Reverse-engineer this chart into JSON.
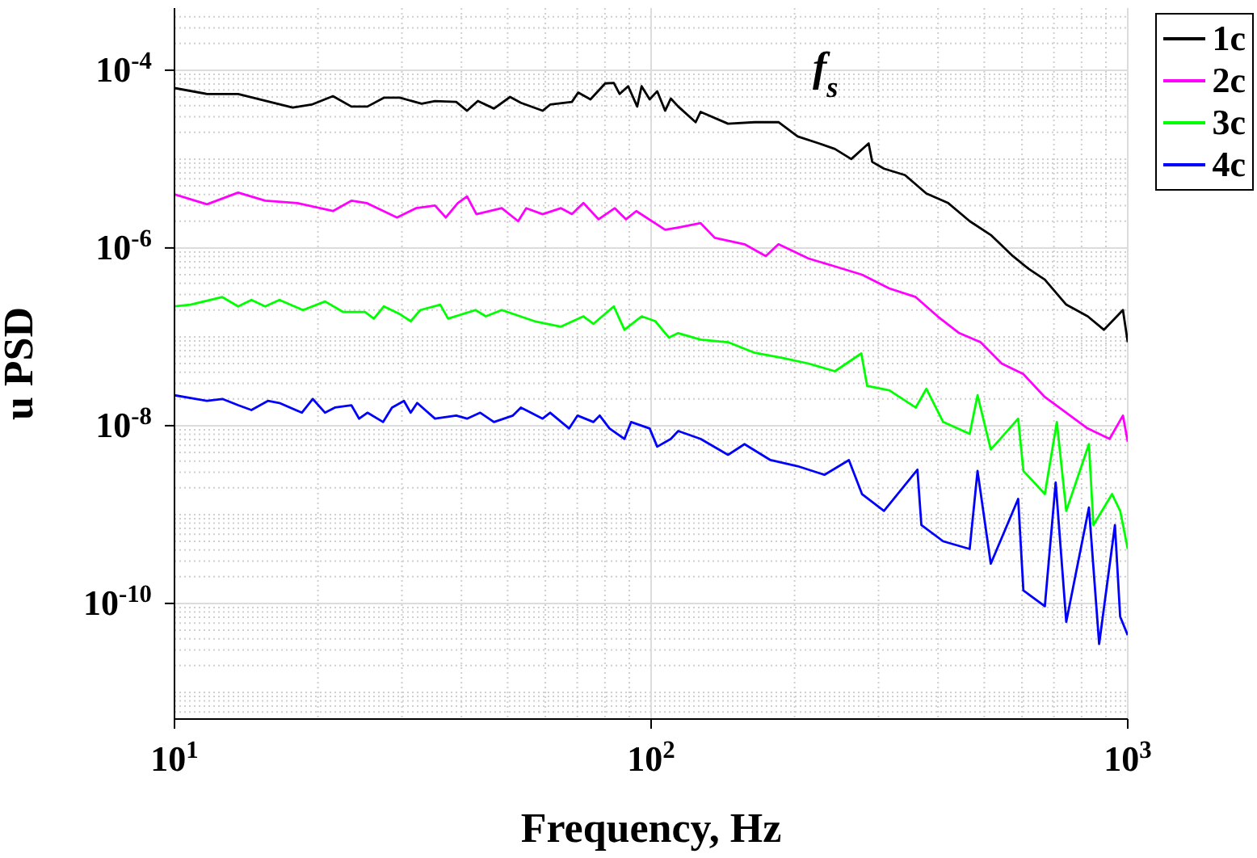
{
  "chart_data": {
    "type": "line",
    "xlabel": "Frequency, Hz",
    "ylabel": "u PSD",
    "log": "xy",
    "grid": true,
    "legend": "top right",
    "marker": "none",
    "line_style": "solid",
    "xlim": [
      10,
      1000
    ],
    "xticks": [
      {
        "value": 10,
        "label": "10$^{1}$"
      },
      {
        "value": 100,
        "label": "10$^{2}$"
      },
      {
        "value": 1000,
        "label": "10$^{3}$"
      }
    ],
    "ylim": [
      5e-12,
      0.0005
    ],
    "yticks": [
      {
        "value": 1e-10,
        "label": "10$^{-10}$"
      },
      {
        "value": 1e-08,
        "label": "10$^{-8}$"
      },
      {
        "value": 1e-06,
        "label": "10$^{-6}$"
      },
      {
        "value": 0.0001,
        "label": "10$^{-4}$"
      }
    ],
    "annotations": [
      "f$_{s}$"
    ],
    "series": [
      {
        "name": "1c",
        "color": "#000000",
        "x": [
          10,
          11.7,
          13.6,
          17.7,
          19.4,
          21.5,
          23.5,
          25.4,
          27.5,
          29.7,
          33,
          35.2,
          39,
          41.1,
          43.3,
          46.8,
          50.6,
          53.3,
          59.2,
          61.4,
          68.2,
          70.3,
          74.6,
          80.1,
          83.5,
          85.9,
          89.5,
          93.5,
          95.5,
          99.3,
          103,
          107,
          110,
          114,
          124,
          127,
          145,
          165,
          185,
          203,
          225,
          243,
          263,
          286,
          291,
          308,
          341,
          378,
          420,
          466,
          516,
          574,
          620,
          670,
          743,
          824,
          891,
          977,
          1000
        ],
        "values": [
          6.3e-05,
          5.4e-05,
          5.4e-05,
          3.8e-05,
          4.1e-05,
          5.1e-05,
          3.9e-05,
          3.9e-05,
          4.9e-05,
          4.9e-05,
          4.2e-05,
          4.5e-05,
          4.4e-05,
          3.5e-05,
          4.5e-05,
          3.7e-05,
          5e-05,
          4.3e-05,
          3.5e-05,
          4.1e-05,
          4.4e-05,
          5.6e-05,
          4.7e-05,
          7.1e-05,
          7.2e-05,
          5.4e-05,
          6.6e-05,
          3.9e-05,
          6.6e-05,
          4.7e-05,
          5.8e-05,
          3.5e-05,
          4.8e-05,
          3.9e-05,
          2.6e-05,
          3.4e-05,
          2.5e-05,
          2.6e-05,
          2.6e-05,
          1.8e-05,
          1.5e-05,
          1.3e-05,
          1e-05,
          1.5e-05,
          9.3e-06,
          7.8e-06,
          6.6e-06,
          4.1e-06,
          3.2e-06,
          2e-06,
          1.4e-06,
          8.1e-07,
          5.8e-07,
          4.4e-07,
          2.3e-07,
          1.7e-07,
          1.2e-07,
          2e-07,
          8.7e-08
        ]
      },
      {
        "name": "2c",
        "color": "#ff00ff",
        "x": [
          10,
          11.7,
          13.6,
          15.5,
          18.1,
          21.5,
          23.5,
          25.3,
          29.3,
          32.1,
          35.2,
          37.1,
          39.3,
          41.1,
          43,
          48.6,
          52.6,
          54.7,
          59.2,
          64.7,
          68.2,
          72.1,
          77.6,
          83.9,
          88.6,
          93.1,
          107,
          114,
          127,
          136,
          157,
          174,
          185,
          214,
          243,
          277,
          316,
          359,
          399,
          443,
          491,
          544,
          604,
          670,
          743,
          824,
          916,
          977,
          1000
        ],
        "values": [
          4e-06,
          3.1e-06,
          4.2e-06,
          3.4e-06,
          3.2e-06,
          2.6e-06,
          3.4e-06,
          3.2e-06,
          2.2e-06,
          2.8e-06,
          3e-06,
          2.2e-06,
          3.2e-06,
          3.8e-06,
          2.4e-06,
          2.8e-06,
          2e-06,
          2.8e-06,
          2.4e-06,
          2.8e-06,
          2.4e-06,
          3.2e-06,
          2.1e-06,
          2.8e-06,
          2.1e-06,
          2.6e-06,
          1.6e-06,
          1.7e-06,
          1.9e-06,
          1.3e-06,
          1.1e-06,
          8.1e-07,
          1.1e-06,
          7.6e-07,
          6.2e-07,
          5e-07,
          3.5e-07,
          2.8e-07,
          1.7e-07,
          1.1e-07,
          8.7e-08,
          5e-08,
          3.8e-08,
          2.1e-08,
          1.4e-08,
          9.3e-09,
          7.1e-09,
          1.3e-08,
          6.6e-09
        ]
      },
      {
        "name": "3c",
        "color": "#00ff00",
        "x": [
          10,
          10.8,
          12.6,
          13.6,
          14.5,
          15.5,
          16.6,
          18.6,
          20.7,
          22.6,
          25.1,
          26.2,
          27.5,
          29.7,
          31.3,
          32.8,
          36.1,
          37.5,
          42.8,
          45,
          48.6,
          56.9,
          64.7,
          72.1,
          75.7,
          83.5,
          87.9,
          95.5,
          102,
          109,
          114,
          127,
          145,
          165,
          188,
          214,
          243,
          276,
          284,
          316,
          359,
          378,
          410,
          466,
          484,
          516,
          589,
          604,
          670,
          710,
          743,
          829,
          847,
          927,
          964,
          1000
        ],
        "values": [
          2.2e-07,
          2.3e-07,
          2.8e-07,
          2.2e-07,
          2.6e-07,
          2.2e-07,
          2.6e-07,
          2e-07,
          2.5e-07,
          1.9e-07,
          1.9e-07,
          1.6e-07,
          2.2e-07,
          1.8e-07,
          1.5e-07,
          2e-07,
          2.3e-07,
          1.6e-07,
          2e-07,
          1.7e-07,
          2e-07,
          1.5e-07,
          1.3e-07,
          1.7e-07,
          1.4e-07,
          2.2e-07,
          1.2e-07,
          1.7e-07,
          1.5e-07,
          9.8e-08,
          1.1e-07,
          9.3e-08,
          8.7e-08,
          6.6e-08,
          5.8e-08,
          5e-08,
          4.1e-08,
          6.5e-08,
          2.8e-08,
          2.5e-08,
          1.6e-08,
          2.6e-08,
          1.1e-08,
          8.1e-09,
          2.2e-08,
          5.4e-09,
          1.2e-08,
          3.1e-09,
          1.7e-09,
          1.1e-08,
          1.1e-09,
          6.2e-09,
          7.6e-10,
          1.7e-09,
          1.1e-09,
          4.1e-10
        ]
      },
      {
        "name": "4c",
        "color": "#0000ff",
        "x": [
          10,
          11.7,
          12.6,
          13.6,
          14.5,
          15.7,
          16.6,
          18.5,
          19.5,
          20.7,
          21.7,
          23.5,
          24.4,
          25.4,
          27.4,
          28.6,
          30.3,
          31.3,
          32.3,
          35.2,
          39,
          41.1,
          43.8,
          46.8,
          51.3,
          53.3,
          59.2,
          61.4,
          67.3,
          70.1,
          75.7,
          78,
          81.8,
          87.9,
          90.8,
          99.3,
          103,
          110,
          114,
          127,
          145,
          157,
          178,
          203,
          231,
          260,
          277,
          308,
          362,
          369,
          410,
          466,
          484,
          516,
          589,
          604,
          670,
          706,
          743,
          829,
          871,
          940,
          964,
          1000
        ],
        "values": [
          2.2e-08,
          1.9e-08,
          2e-08,
          1.7e-08,
          1.5e-08,
          1.9e-08,
          1.8e-08,
          1.4e-08,
          2e-08,
          1.4e-08,
          1.6e-08,
          1.7e-08,
          1.2e-08,
          1.4e-08,
          1.1e-08,
          1.6e-08,
          1.9e-08,
          1.4e-08,
          1.8e-08,
          1.2e-08,
          1.3e-08,
          1.2e-08,
          1.4e-08,
          1.1e-08,
          1.3e-08,
          1.6e-08,
          1.2e-08,
          1.4e-08,
          9.3e-09,
          1.3e-08,
          1.1e-08,
          1.3e-08,
          9.3e-09,
          7.1e-09,
          1.1e-08,
          9.3e-09,
          5.8e-09,
          7.1e-09,
          8.7e-09,
          7.1e-09,
          4.7e-09,
          6.2e-09,
          4.1e-09,
          3.5e-09,
          2.8e-09,
          4.1e-09,
          1.7e-09,
          1.1e-09,
          3.2e-09,
          7.6e-10,
          5e-10,
          4.1e-10,
          3.1e-09,
          2.8e-10,
          1.5e-09,
          1.4e-10,
          9.3e-11,
          2.3e-09,
          6.2e-11,
          1.2e-09,
          3.5e-11,
          7.6e-10,
          7.1e-11,
          4.4e-11
        ]
      }
    ]
  }
}
